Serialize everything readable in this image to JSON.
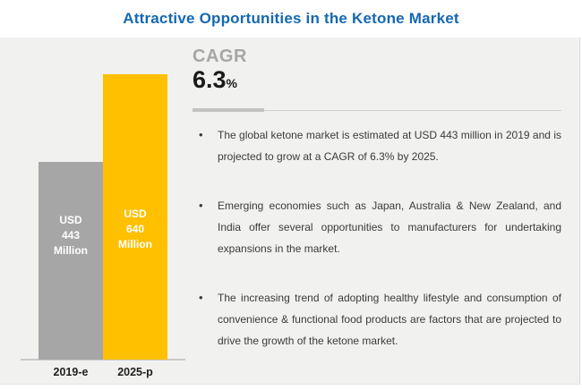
{
  "title": "Attractive Opportunities in the Ketone Market",
  "colors": {
    "title_blue": "#1568b3",
    "panel_bg": "#f1f1ef",
    "bar_gray": "#a6a6a6",
    "bar_yellow": "#ffc000",
    "cagr_gray": "#a6a6a6",
    "text_dark": "#3b3b3b"
  },
  "cagr": {
    "label": "CAGR",
    "value": "6.3",
    "unit": "%"
  },
  "bullets": [
    {
      "text": "The global ketone market is estimated at USD 443 million in 2019 and is projected to grow at a CAGR of 6.3% by 2025."
    },
    {
      "text": "Emerging economies such as Japan, Australia & New Zealand, and India offer several opportunities to manufacturers for undertaking expansions in the market."
    },
    {
      "text": "The increasing trend of adopting healthy lifestyle and consumption of convenience & functional food products are factors that are projected to drive the growth of the ketone market."
    }
  ],
  "chart_data": {
    "type": "bar",
    "title": "Attractive Opportunities in the Ketone Market",
    "categories": [
      "2019-e",
      "2025-p"
    ],
    "values": [
      443,
      640
    ],
    "value_unit": "USD Million",
    "bar_labels": [
      "USD\n443\nMillion",
      "USD\n640\nMillion"
    ],
    "bar_colors": [
      "#a6a6a6",
      "#ffc000"
    ],
    "cagr_percent": 6.3,
    "ylim": [
      0,
      640
    ],
    "grid": false,
    "legend": "none"
  }
}
